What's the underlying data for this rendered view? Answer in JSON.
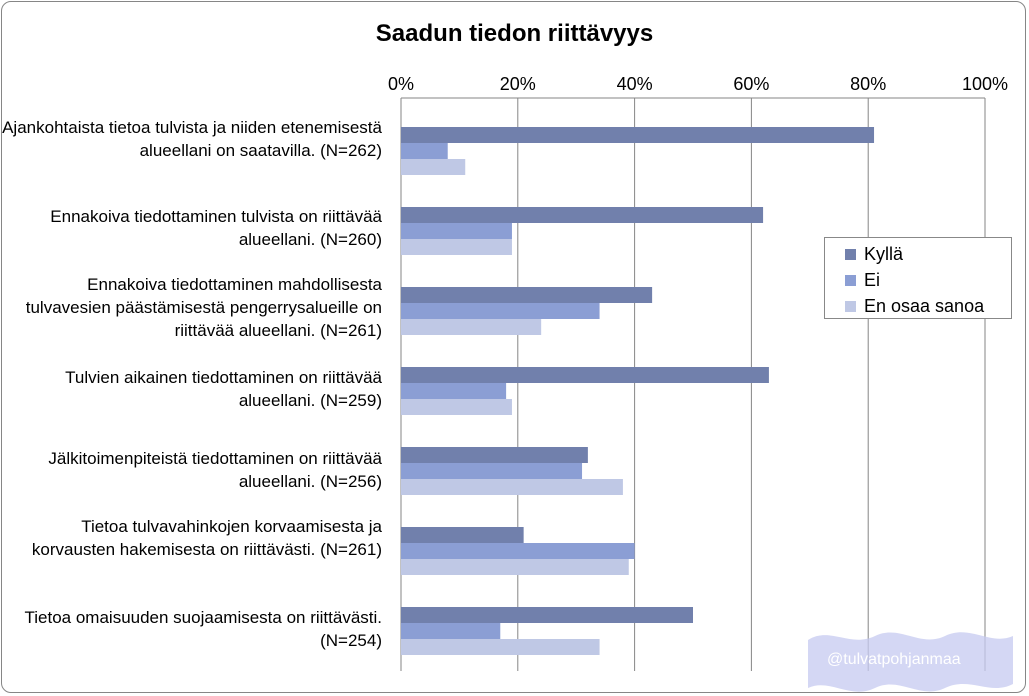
{
  "chart_data": {
    "type": "bar",
    "orientation": "horizontal",
    "title": "Saadun tiedon riittävyys",
    "xlim": [
      0,
      100
    ],
    "x_ticks": [
      "0%",
      "20%",
      "40%",
      "60%",
      "80%",
      "100%"
    ],
    "x_tick_values": [
      0,
      20,
      40,
      60,
      80,
      100
    ],
    "x_axis_position": "top",
    "grid": true,
    "legend_position": "right",
    "categories": [
      "Ajankohtaista tietoa tulvista ja niiden etenemisestä alueellani on saatavilla. (N=262)",
      "Ennakoiva tiedottaminen tulvista on riittävää alueellani. (N=260)",
      "Ennakoiva tiedottaminen mahdollisesta tulvavesien päästämisestä pengerrysalueille on riittävää alueellani. (N=261)",
      "Tulvien aikainen tiedottaminen on riittävää alueellani. (N=259)",
      "Jälkitoimenpiteistä tiedottaminen on riittävää alueellani. (N=256)",
      "Tietoa tulvavahinkojen korvaamisesta ja korvausten hakemisesta on riittävästi. (N=261)",
      "Tietoa omaisuuden suojaamisesta on riittävästi. (N=254)"
    ],
    "series": [
      {
        "name": "Kyllä",
        "color": "#7180AC",
        "values": [
          81,
          62,
          43,
          63,
          32,
          21,
          50
        ]
      },
      {
        "name": "Ei",
        "color": "#8B9ED4",
        "values": [
          8,
          19,
          34,
          18,
          31,
          40,
          17
        ]
      },
      {
        "name": "En osaa sanoa",
        "color": "#BFC8E5",
        "values": [
          11,
          19,
          24,
          19,
          38,
          39,
          34
        ]
      }
    ]
  },
  "watermark": {
    "text": "@tulvatpohjanmaa"
  }
}
